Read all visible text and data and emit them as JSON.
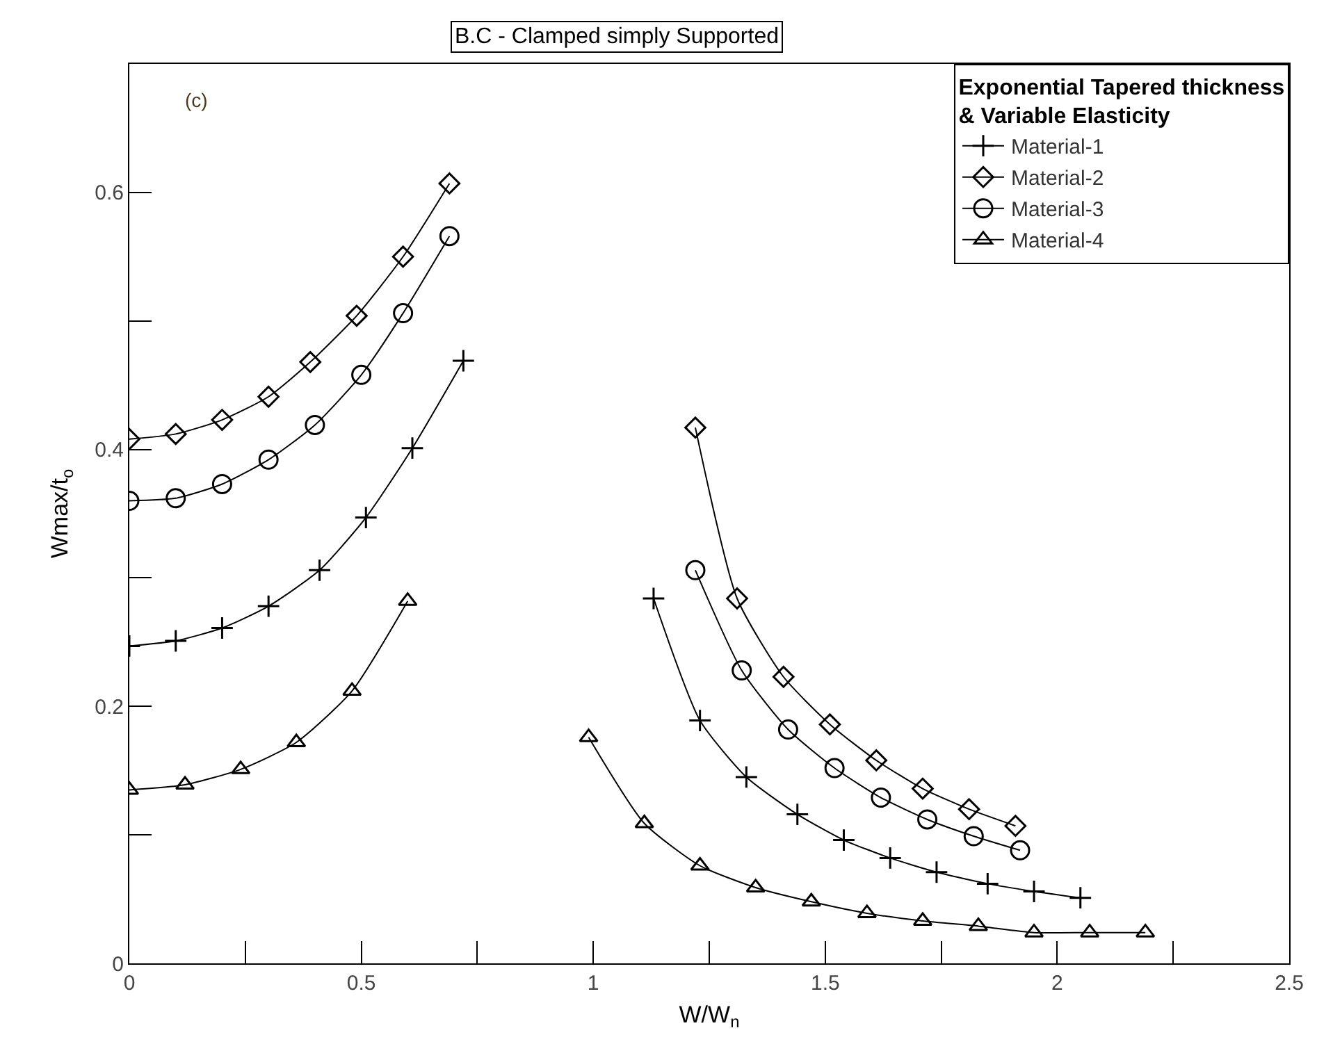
{
  "chart_data": {
    "type": "line",
    "title": "B.C - Clamped simply Supported",
    "xlabel": "W/W$_{n}$",
    "ylabel": "Wmax/t$_{o}$",
    "legend_title": "Exponential Tapered thickness\n& Variable Elasticity",
    "annotations": [
      "(c)"
    ],
    "xlim": [
      0,
      2.5
    ],
    "xticks": [
      0,
      {
        "value": 0.25,
        "label": null
      },
      0.5,
      {
        "value": 0.75,
        "label": null
      },
      1,
      {
        "value": 1.25,
        "label": null
      },
      1.5,
      {
        "value": 1.75,
        "label": null
      },
      2,
      {
        "value": 2.25,
        "label": null
      },
      2.5
    ],
    "ylim": [
      0,
      0.7
    ],
    "yticks": [
      0,
      {
        "value": 0.1,
        "label": null
      },
      0.2,
      {
        "value": 0.3,
        "label": null
      },
      0.4,
      {
        "value": 0.5,
        "label": null
      },
      0.6
    ],
    "grid": false,
    "legend": "top right",
    "line_style": "solid",
    "series": [
      {
        "name": "Material-1",
        "color": "#000000",
        "marker": "cross",
        "x": [
          0,
          0.1,
          0.2,
          0.3,
          0.41,
          0.51,
          0.61,
          0.72,
          null,
          1.13,
          1.23,
          1.33,
          1.44,
          1.54,
          1.64,
          1.74,
          1.85,
          1.95,
          2.05
        ],
        "values": [
          0.247,
          0.251,
          0.261,
          0.278,
          0.306,
          0.347,
          0.401,
          0.469,
          null,
          0.284,
          0.189,
          0.145,
          0.116,
          0.096,
          0.082,
          0.071,
          0.062,
          0.056,
          0.051
        ]
      },
      {
        "name": "Material-2",
        "color": "#000000",
        "marker": "diamond",
        "x": [
          0,
          0.1,
          0.2,
          0.3,
          0.39,
          0.49,
          0.59,
          0.69,
          null,
          1.22,
          1.31,
          1.41,
          1.51,
          1.61,
          1.71,
          1.81,
          1.91
        ],
        "values": [
          0.408,
          0.412,
          0.423,
          0.441,
          0.468,
          0.504,
          0.55,
          0.607,
          null,
          0.417,
          0.284,
          0.223,
          0.186,
          0.158,
          0.136,
          0.12,
          0.107
        ]
      },
      {
        "name": "Material-3",
        "color": "#000000",
        "marker": "circle",
        "x": [
          0,
          0.1,
          0.2,
          0.3,
          0.4,
          0.5,
          0.59,
          0.69,
          null,
          1.22,
          1.32,
          1.42,
          1.52,
          1.62,
          1.72,
          1.82,
          1.92
        ],
        "values": [
          0.36,
          0.362,
          0.373,
          0.392,
          0.419,
          0.458,
          0.506,
          0.566,
          null,
          0.306,
          0.228,
          0.182,
          0.152,
          0.129,
          0.112,
          0.099,
          0.088
        ]
      },
      {
        "name": "Material-4",
        "color": "#000000",
        "marker": "triangle",
        "x": [
          0,
          0.12,
          0.24,
          0.36,
          0.48,
          0.6,
          null,
          0.99,
          1.11,
          1.23,
          1.35,
          1.47,
          1.59,
          1.71,
          1.83,
          1.95,
          2.07,
          2.19
        ],
        "values": [
          0.135,
          0.139,
          0.151,
          0.172,
          0.212,
          0.282,
          null,
          0.176,
          0.109,
          0.076,
          0.059,
          0.048,
          0.039,
          0.033,
          0.029,
          0.024,
          0.024,
          0.024
        ]
      }
    ]
  }
}
